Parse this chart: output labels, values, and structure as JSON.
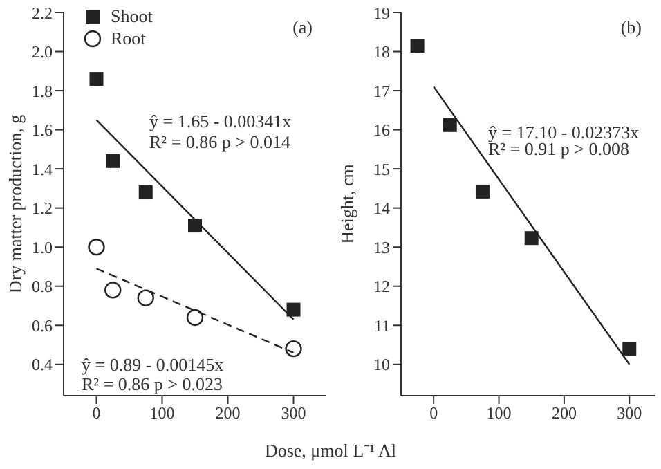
{
  "chart_data": [
    {
      "type": "scatter",
      "title": "(a)",
      "xlabel": "Dose, μmol L⁻¹ Al",
      "ylabel": "Dry matter production, g",
      "xlim": [
        -50,
        350
      ],
      "xticks": [
        0,
        100,
        200,
        300
      ],
      "ylim": [
        0.24,
        2.2
      ],
      "yticks": [
        0.4,
        0.6,
        0.8,
        {
          "value": 1,
          "label": "1.0"
        },
        1.2,
        1.4,
        1.6,
        1.8,
        {
          "value": 2,
          "label": "2.0"
        },
        2.2
      ],
      "grid": false,
      "legend": "top left",
      "series": [
        {
          "name": "Shoot",
          "type": "scatter",
          "marker": "square",
          "color": "#222222",
          "x": [
            0,
            25,
            75,
            150,
            300
          ],
          "values": [
            1.86,
            1.44,
            1.28,
            1.11,
            0.68
          ]
        },
        {
          "name": "Root",
          "type": "scatter",
          "marker": "circle",
          "color": "#222222",
          "x": [
            0,
            25,
            75,
            150,
            300
          ],
          "values": [
            1.0,
            0.78,
            0.74,
            0.64,
            0.48
          ]
        },
        {
          "type": "line",
          "marker": "none",
          "line_style": "solid",
          "color": "#222222",
          "x": [
            0,
            300
          ],
          "values": [
            1.65,
            0.63
          ]
        },
        {
          "type": "line",
          "marker": "none",
          "line_style": "dashed",
          "color": "#222222",
          "x": [
            0,
            300
          ],
          "values": [
            0.89,
            0.46
          ]
        }
      ],
      "annotations": [
        "ŷ = 1.65 - 0.00341x",
        "R² = 0.86  p > 0.014",
        "ŷ = 0.89 - 0.00145x",
        "R² = 0.86  p > 0.023"
      ]
    },
    {
      "type": "scatter",
      "title": "(b)",
      "ylabel": "Height, cm",
      "xlim": [
        -50,
        340
      ],
      "xticks": [
        0,
        100,
        200,
        300
      ],
      "ylim": [
        9.2,
        19
      ],
      "yticks": [
        10,
        11,
        12,
        13,
        14,
        15,
        16,
        17,
        18,
        19
      ],
      "grid": false,
      "series": [
        {
          "type": "scatter",
          "marker": "square",
          "color": "#222222",
          "x": [
            -25,
            25,
            75,
            150,
            300
          ],
          "values": [
            18.15,
            16.12,
            14.42,
            13.23,
            10.4
          ]
        },
        {
          "type": "line",
          "marker": "none",
          "line_style": "solid",
          "color": "#222222",
          "x": [
            0,
            300
          ],
          "values": [
            17.1,
            10.0
          ]
        }
      ],
      "annotations": [
        "ŷ = 17.10 - 0.02373x",
        "R² = 0.91  p > 0.008"
      ]
    }
  ]
}
